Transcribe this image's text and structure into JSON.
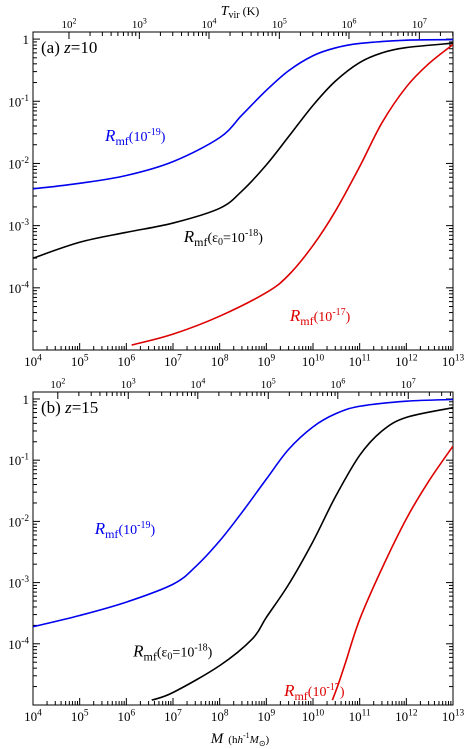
{
  "figure": {
    "top_axis_label": "T",
    "top_axis_label_sub": "vir",
    "top_axis_unit": "(K)",
    "xlabel_M": "M",
    "xlabel_unit": "(h",
    "xlabel_unit_exp": "-1",
    "xlabel_unit_M": "M",
    "xlabel_unit_sun": "⊙",
    "xlabel_unit_close": ")"
  },
  "chart_data": [
    {
      "type": "line",
      "panel_label_prefix": "(a)",
      "panel_label_z": "z",
      "panel_label_value": "=10",
      "xscale": "log",
      "yscale": "log",
      "xlim": [
        10000.0,
        10000000000000.0
      ],
      "ylim": [
        1e-05,
        1.3
      ],
      "x_ticks": [
        "10^4",
        "10^5",
        "10^6",
        "10^7",
        "10^8",
        "10^9",
        "10^10",
        "10^11",
        "10^12",
        "10^13"
      ],
      "y_ticks": [
        "1",
        "10^-1",
        "10^-2",
        "10^-3",
        "10^-4"
      ],
      "top_axis": {
        "label": "T_vir (K)",
        "ticks": [
          {
            "label": "10^2",
            "M": 59000.0
          },
          {
            "label": "10^3",
            "M": 1900000.0
          },
          {
            "label": "10^4",
            "M": 59000000.0
          },
          {
            "label": "10^5",
            "M": 1900000000.0
          },
          {
            "label": "10^6",
            "M": 59000000000.0
          },
          {
            "label": "10^7",
            "M": 1900000000000.0
          }
        ]
      },
      "series": [
        {
          "name": "R_mf(10^-19)",
          "color": "#0000ee",
          "x": [
            10000.0,
            100000.0,
            1000000.0,
            10000000.0,
            100000000.0,
            300000000.0,
            1000000000.0,
            3000000000.0,
            10000000000.0,
            30000000000.0,
            100000000000.0,
            1000000000000.0,
            10000000000000.0
          ],
          "y": [
            0.0039,
            0.0048,
            0.0064,
            0.0107,
            0.026,
            0.06,
            0.15,
            0.31,
            0.54,
            0.72,
            0.85,
            0.96,
            0.98
          ]
        },
        {
          "name": "R_mf(ε0=10^-18)",
          "color": "#000000",
          "x": [
            10000.0,
            100000.0,
            1000000.0,
            10000000.0,
            100000000.0,
            300000000.0,
            1000000000.0,
            3000000000.0,
            10000000000.0,
            30000000000.0,
            100000000000.0,
            300000000000.0,
            1000000000000.0,
            10000000000000.0
          ],
          "y": [
            0.0003,
            0.00054,
            0.00078,
            0.0011,
            0.0019,
            0.0036,
            0.0095,
            0.027,
            0.086,
            0.21,
            0.42,
            0.6,
            0.73,
            0.86
          ]
        },
        {
          "name": "R_mf(10^-17)",
          "color": "#dd0000",
          "x": [
            1300000.0,
            10000000.0,
            100000000.0,
            1000000000.0,
            3000000000.0,
            10000000000.0,
            30000000000.0,
            100000000000.0,
            300000000000.0,
            1000000000000.0,
            3000000000000.0,
            10000000000000.0
          ],
          "y": [
            1.2e-05,
            1.8e-05,
            3.5e-05,
            8.4e-05,
            0.00016,
            0.00048,
            0.0017,
            0.0089,
            0.045,
            0.17,
            0.4,
            0.82
          ]
        }
      ],
      "annotations": [
        {
          "series": 0,
          "R": "R",
          "sub": "mf",
          "text": "(10",
          "exp": "-19",
          "close": ")",
          "color": "#0000ee",
          "at": [
            350000.0,
            0.023
          ]
        },
        {
          "series": 1,
          "R": "R",
          "sub": "mf",
          "text": "(ε",
          "text_sub": "0",
          "text2": "=10",
          "exp": "-18",
          "close": ")",
          "color": "#000000",
          "at": [
            17000000.0,
            0.00055
          ]
        },
        {
          "series": 2,
          "R": "R",
          "sub": "mf",
          "text": "(10",
          "exp": "-17",
          "close": ")",
          "color": "#dd0000",
          "at": [
            3200000000.0,
            2.9e-05
          ]
        }
      ]
    },
    {
      "type": "line",
      "panel_label_prefix": "(b)",
      "panel_label_z": "z",
      "panel_label_value": "=15",
      "xscale": "log",
      "yscale": "log",
      "xlim": [
        10000.0,
        10000000000000.0
      ],
      "ylim": [
        1e-05,
        1.3
      ],
      "x_ticks": [
        "10^4",
        "10^5",
        "10^6",
        "10^7",
        "10^8",
        "10^9",
        "10^10",
        "10^11",
        "10^12",
        "10^13"
      ],
      "y_ticks": [
        "1",
        "10^-1",
        "10^-2",
        "10^-3",
        "10^-4"
      ],
      "top_axis": {
        "label": "",
        "ticks": [
          {
            "label": "10^2",
            "M": 34000.0
          },
          {
            "label": "10^3",
            "M": 1100000.0
          },
          {
            "label": "10^4",
            "M": 34000000.0
          },
          {
            "label": "10^5",
            "M": 1100000000.0
          },
          {
            "label": "10^6",
            "M": 34000000000.0
          },
          {
            "label": "10^7",
            "M": 1100000000000.0
          }
        ]
      },
      "series": [
        {
          "name": "R_mf(10^-19)",
          "color": "#0000ee",
          "x": [
            10000.0,
            100000.0,
            1000000.0,
            10000000.0,
            30000000.0,
            100000000.0,
            300000000.0,
            1000000000.0,
            3000000000.0,
            10000000000.0,
            30000000000.0,
            100000000000.0,
            1000000000000.0,
            10000000000000.0
          ],
          "y": [
            0.00019,
            0.00029,
            0.00048,
            0.00094,
            0.0018,
            0.0048,
            0.014,
            0.049,
            0.15,
            0.35,
            0.57,
            0.76,
            0.92,
            0.98
          ]
        },
        {
          "name": "R_mf(ε0=10^-18)",
          "color": "#000000",
          "x": [
            3500000.0,
            10000000.0,
            100000000.0,
            500000000.0,
            1000000000.0,
            3000000000.0,
            10000000000.0,
            30000000000.0,
            100000000000.0,
            300000000000.0,
            1000000000000.0,
            10000000000000.0
          ],
          "y": [
            1.2e-05,
            1.6e-05,
            4.4e-05,
            0.00012,
            0.00027,
            0.00093,
            0.0047,
            0.025,
            0.12,
            0.3,
            0.5,
            0.72
          ]
        },
        {
          "name": "R_mf(10^-17)",
          "color": "#dd0000",
          "x": [
            26000000000.0,
            35000000000.0,
            50000000000.0,
            100000000000.0,
            300000000000.0,
            1000000000000.0,
            3000000000000.0,
            10000000000000.0
          ],
          "y": [
            1.2e-05,
            2.2e-05,
            5e-05,
            0.00025,
            0.0017,
            0.011,
            0.045,
            0.17
          ]
        }
      ],
      "annotations": [
        {
          "series": 0,
          "R": "R",
          "sub": "mf",
          "text": "(10",
          "exp": "-19",
          "close": ")",
          "color": "#0000ee",
          "at": [
            210000.0,
            0.0062
          ]
        },
        {
          "series": 1,
          "R": "R",
          "sub": "mf",
          "text": "(ε",
          "text_sub": "0",
          "text2": "=10",
          "exp": "-18",
          "close": ")",
          "color": "#000000",
          "at": [
            1400000.0,
            6.2e-05
          ]
        },
        {
          "series": 2,
          "R": "R",
          "sub": "mf",
          "text": "(10",
          "exp": "-17",
          "close": ")",
          "color": "#dd0000",
          "at": [
            2400000000.0,
            1.4e-05
          ]
        }
      ]
    }
  ]
}
